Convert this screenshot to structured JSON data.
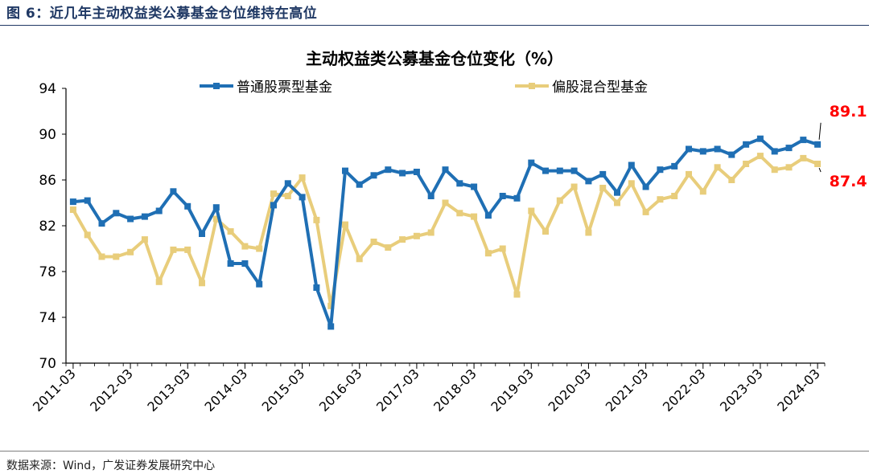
{
  "figure": {
    "caption": "图 6：近几年主动权益类公募基金仓位维持在高位",
    "source": "数据来源：Wind，广发证券发展研究中心"
  },
  "chart_data": {
    "type": "line",
    "title": "主动权益类公募基金仓位变化（%）",
    "xlabel": "",
    "ylabel": "",
    "ylim": [
      70,
      94
    ],
    "yticks": [
      70,
      74,
      78,
      82,
      86,
      90,
      94
    ],
    "xtick_labels": [
      "2011-03",
      "2012-03",
      "2013-03",
      "2014-03",
      "2015-03",
      "2016-03",
      "2017-03",
      "2018-03",
      "2019-03",
      "2020-03",
      "2021-03",
      "2022-03",
      "2023-03",
      "2024-03"
    ],
    "x": [
      "2011-03",
      "2011-06",
      "2011-09",
      "2011-12",
      "2012-03",
      "2012-06",
      "2012-09",
      "2012-12",
      "2013-03",
      "2013-06",
      "2013-09",
      "2013-12",
      "2014-03",
      "2014-06",
      "2014-09",
      "2014-12",
      "2015-03",
      "2015-06",
      "2015-09",
      "2015-12",
      "2016-03",
      "2016-06",
      "2016-09",
      "2016-12",
      "2017-03",
      "2017-06",
      "2017-09",
      "2017-12",
      "2018-03",
      "2018-06",
      "2018-09",
      "2018-12",
      "2019-03",
      "2019-06",
      "2019-09",
      "2019-12",
      "2020-03",
      "2020-06",
      "2020-09",
      "2020-12",
      "2021-03",
      "2021-06",
      "2021-09",
      "2021-12",
      "2022-03",
      "2022-06",
      "2022-09",
      "2022-12",
      "2023-03",
      "2023-06",
      "2023-09",
      "2023-12",
      "2024-03"
    ],
    "grid": false,
    "legend_position": "top",
    "series": [
      {
        "name": "普通股票型基金",
        "color": "#1f6fb4",
        "marker": "square",
        "values": [
          84.1,
          84.2,
          82.2,
          83.1,
          82.6,
          82.8,
          83.3,
          85.0,
          83.7,
          81.3,
          83.6,
          78.7,
          78.7,
          76.9,
          83.8,
          85.7,
          84.5,
          76.6,
          73.2,
          86.8,
          85.6,
          86.4,
          86.9,
          86.6,
          86.7,
          84.6,
          86.9,
          85.7,
          85.4,
          82.9,
          84.6,
          84.4,
          87.5,
          86.8,
          86.8,
          86.8,
          85.9,
          86.5,
          84.9,
          87.3,
          85.4,
          86.9,
          87.2,
          88.7,
          88.5,
          88.7,
          88.2,
          89.1,
          89.6,
          88.5,
          88.8,
          89.5,
          89.1
        ]
      },
      {
        "name": "偏股混合型基金",
        "color": "#e8cd7b",
        "marker": "square",
        "values": [
          83.4,
          81.2,
          79.3,
          79.3,
          79.7,
          80.8,
          77.1,
          79.9,
          79.9,
          77.0,
          82.6,
          81.5,
          80.2,
          80.0,
          84.8,
          84.6,
          86.2,
          82.5,
          75.0,
          82.1,
          79.1,
          80.6,
          80.1,
          80.8,
          81.1,
          81.4,
          84.0,
          83.1,
          82.8,
          79.6,
          80.0,
          76.0,
          83.3,
          81.5,
          84.2,
          85.4,
          81.4,
          85.3,
          84.0,
          85.7,
          83.2,
          84.3,
          84.6,
          86.5,
          85.0,
          87.1,
          86.0,
          87.4,
          88.1,
          86.9,
          87.1,
          87.9,
          87.4
        ]
      }
    ],
    "annotations": [
      {
        "text": "89.1",
        "series": 0,
        "color": "#ff0000"
      },
      {
        "text": "87.4",
        "series": 1,
        "color": "#ff0000"
      }
    ]
  }
}
